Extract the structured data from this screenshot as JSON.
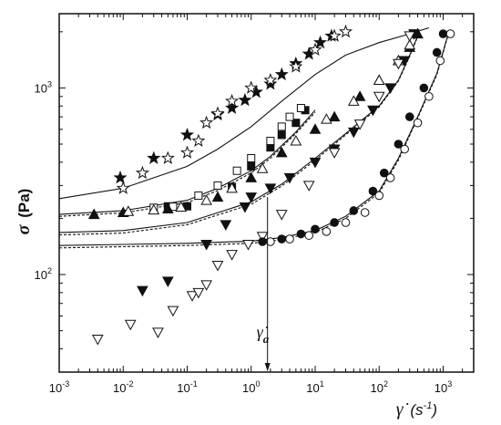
{
  "chart_data": {
    "type": "scatter",
    "xscale": "log",
    "yscale": "log",
    "xlim": [
      0.001,
      3000
    ],
    "ylim": [
      30,
      2500
    ],
    "grid": false,
    "xlabel": {
      "main": "γ̇",
      "paren": "(s",
      "exp": "-1",
      "close": ")"
    },
    "ylabel": {
      "main": "σ",
      "unit": "(Pa)"
    },
    "x_ticks": [
      {
        "base": "10",
        "exp": "-3",
        "value": 0.001
      },
      {
        "base": "10",
        "exp": "-2",
        "value": 0.01
      },
      {
        "base": "10",
        "exp": "-1",
        "value": 0.1
      },
      {
        "base": "10",
        "exp": "0",
        "value": 1
      },
      {
        "base": "10",
        "exp": "1",
        "value": 10
      },
      {
        "base": "10",
        "exp": "2",
        "value": 100
      },
      {
        "base": "10",
        "exp": "3",
        "value": 1000
      }
    ],
    "y_ticks": [
      {
        "base": "10",
        "exp": "2",
        "value": 100
      },
      {
        "base": "10",
        "exp": "3",
        "value": 1000
      }
    ],
    "annotation": {
      "text": "γ̇",
      "subscript": "a",
      "x": 1.8
    },
    "series": [
      {
        "marker": "star-filled",
        "x": [
          0.009,
          0.03,
          0.1,
          0.3,
          0.5,
          0.8,
          1.2,
          2,
          3,
          5,
          8,
          12,
          18
        ],
        "y": [
          330,
          420,
          560,
          720,
          780,
          860,
          950,
          1050,
          1180,
          1350,
          1520,
          1750,
          1900
        ]
      },
      {
        "marker": "star-open",
        "x": [
          0.01,
          0.02,
          0.05,
          0.1,
          0.15,
          0.2,
          0.3,
          0.5,
          1,
          2,
          5,
          10,
          20,
          30
        ],
        "y": [
          290,
          350,
          420,
          450,
          520,
          650,
          730,
          850,
          1000,
          1100,
          1300,
          1600,
          1900,
          2000
        ]
      },
      {
        "marker": "square-filled",
        "x": [
          0.05,
          0.1,
          0.5,
          1,
          2,
          3,
          5,
          7
        ],
        "y": [
          232,
          232,
          295,
          380,
          480,
          560,
          650,
          760
        ]
      },
      {
        "marker": "square-open",
        "x": [
          0.03,
          0.06,
          0.15,
          0.3,
          0.6,
          1,
          2,
          3,
          4,
          6
        ],
        "y": [
          228,
          231,
          265,
          300,
          360,
          420,
          520,
          620,
          700,
          780
        ]
      },
      {
        "marker": "triangle-up-filled",
        "x": [
          0.0035,
          0.01,
          0.05,
          0.3,
          1,
          3,
          10,
          20,
          50,
          100,
          200,
          300,
          400
        ],
        "y": [
          210,
          215,
          225,
          260,
          330,
          450,
          600,
          700,
          900,
          1100,
          1400,
          1650,
          1950
        ]
      },
      {
        "marker": "triangle-up-open",
        "x": [
          0.012,
          0.03,
          0.08,
          0.2,
          0.5,
          1.5,
          5,
          15,
          40,
          100,
          200,
          300
        ],
        "y": [
          218,
          222,
          230,
          250,
          290,
          370,
          520,
          680,
          850,
          1100,
          1400,
          1700
        ]
      },
      {
        "marker": "triangle-down-filled",
        "x": [
          0.02,
          0.05,
          0.2,
          0.4,
          0.8,
          1,
          2,
          4,
          10,
          20,
          40,
          80,
          150,
          250,
          350
        ],
        "y": [
          82,
          92,
          145,
          185,
          230,
          260,
          290,
          330,
          400,
          470,
          580,
          760,
          1000,
          1400,
          1950
        ]
      },
      {
        "marker": "triangle-down-open",
        "x": [
          0.004,
          0.013,
          0.035,
          0.06,
          0.12,
          0.15,
          0.2,
          0.3,
          0.5,
          0.9,
          1.5,
          3,
          8,
          20,
          50,
          100,
          200,
          300
        ],
        "y": [
          45,
          54,
          49,
          64,
          77,
          80,
          88,
          112,
          128,
          145,
          160,
          210,
          300,
          450,
          640,
          900,
          1350,
          1900
        ]
      },
      {
        "marker": "circle-filled",
        "x": [
          1.5,
          3,
          6,
          10,
          20,
          40,
          80,
          120,
          200,
          300,
          500,
          800,
          1000
        ],
        "y": [
          150,
          155,
          165,
          175,
          190,
          220,
          280,
          350,
          500,
          700,
          1000,
          1550,
          1950
        ]
      },
      {
        "marker": "circle-open",
        "x": [
          2,
          4,
          8,
          15,
          30,
          60,
          100,
          150,
          250,
          400,
          600,
          900,
          1300
        ],
        "y": [
          150,
          155,
          162,
          170,
          190,
          215,
          265,
          330,
          470,
          650,
          900,
          1400,
          1950
        ]
      }
    ],
    "fit_lines": [
      {
        "style": "solid",
        "x": [
          0.001,
          0.01,
          0.1,
          0.3,
          1,
          3,
          10,
          30,
          100,
          300,
          600
        ],
        "y": [
          255,
          290,
          380,
          470,
          620,
          850,
          1180,
          1500,
          1750,
          1950,
          2100
        ]
      },
      {
        "style": "solid",
        "x": [
          0.001,
          0.01,
          0.1,
          0.3,
          1,
          2,
          5,
          10
        ],
        "y": [
          210,
          220,
          250,
          290,
          360,
          430,
          580,
          760
        ]
      },
      {
        "style": "dashed",
        "x": [
          0.001,
          0.01,
          0.1,
          0.3,
          1,
          2,
          5,
          10
        ],
        "y": [
          205,
          214,
          243,
          282,
          350,
          420,
          570,
          740
        ]
      },
      {
        "style": "solid",
        "x": [
          0.001,
          0.01,
          0.1,
          1,
          3,
          10,
          30,
          100,
          200,
          300,
          400
        ],
        "y": [
          168,
          172,
          190,
          245,
          305,
          420,
          570,
          800,
          1100,
          1500,
          1900
        ]
      },
      {
        "style": "dashed",
        "x": [
          0.001,
          0.01,
          0.1,
          1,
          3,
          10,
          30,
          100,
          200,
          300,
          400
        ],
        "y": [
          163,
          167,
          185,
          238,
          298,
          410,
          560,
          790,
          1090,
          1480,
          1880
        ]
      },
      {
        "style": "solid",
        "x": [
          0.001,
          0.01,
          0.1,
          1,
          3,
          10,
          30,
          100,
          200,
          400,
          800,
          1200
        ],
        "y": [
          143,
          145,
          147,
          151,
          158,
          172,
          205,
          280,
          420,
          700,
          1200,
          1950
        ]
      },
      {
        "style": "dashed",
        "x": [
          0.001,
          0.01,
          0.1,
          1,
          3,
          10,
          30,
          100,
          200,
          400,
          800,
          1200
        ],
        "y": [
          139,
          141,
          143,
          147,
          154,
          168,
          200,
          274,
          410,
          690,
          1180,
          1930
        ]
      }
    ]
  }
}
